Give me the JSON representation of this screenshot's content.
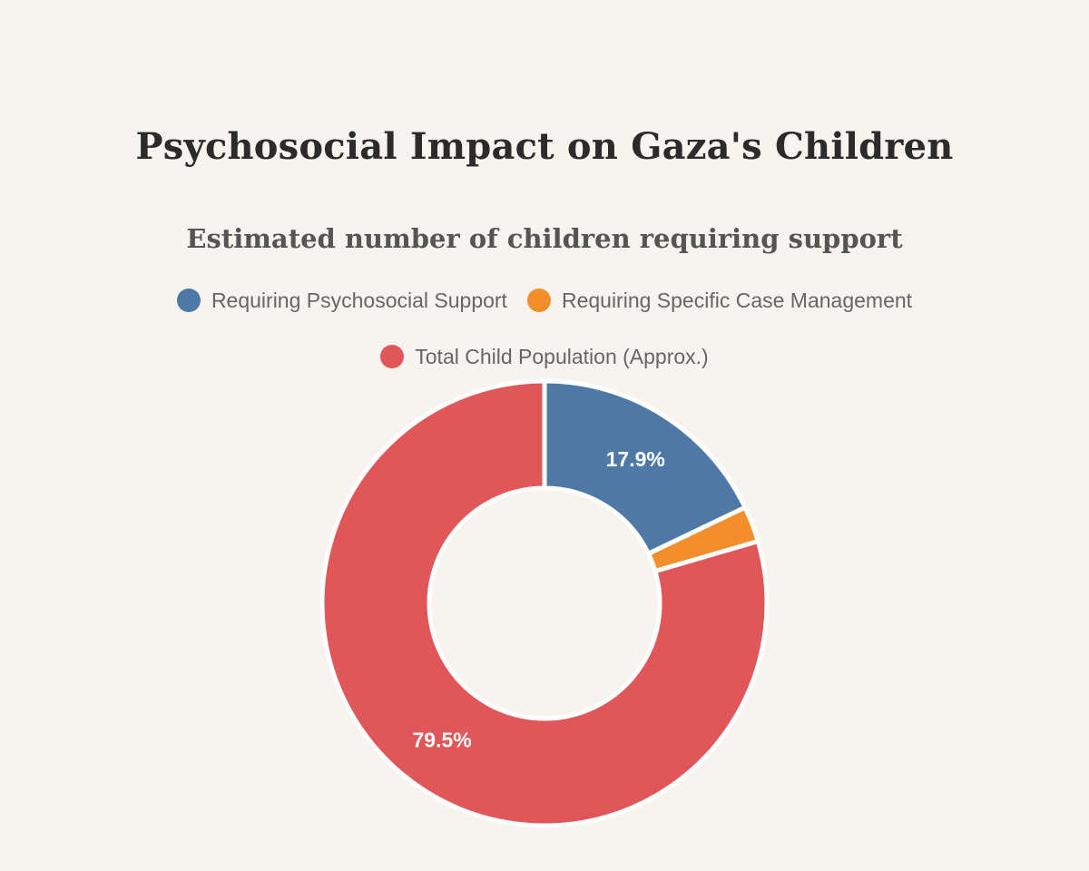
{
  "title": "Psychosocial Impact on Gaza's Children",
  "chart_data": {
    "type": "pie",
    "variant": "doughnut",
    "title": "Estimated number of children requiring support",
    "legend_position": "top",
    "series": [
      {
        "name": "Requiring Psychosocial Support",
        "percent": 17.9,
        "color": "#4e79a7",
        "label": "17.9%"
      },
      {
        "name": "Requiring Specific Case Management",
        "percent": 2.6,
        "color": "#f28e2b",
        "label": ""
      },
      {
        "name": "Total Child Population (Approx.)",
        "percent": 79.5,
        "color": "#e15759",
        "label": "79.5%"
      }
    ]
  }
}
